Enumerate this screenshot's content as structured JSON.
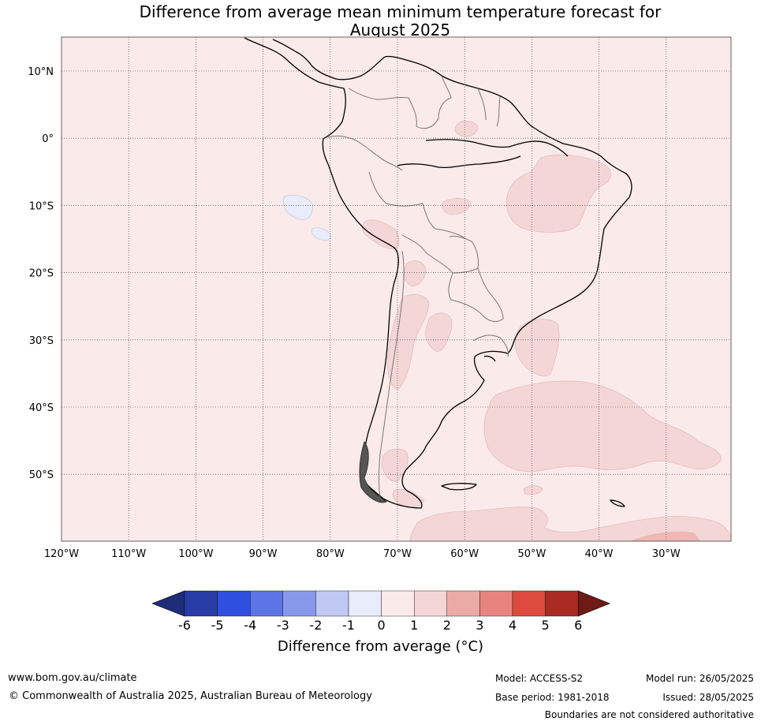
{
  "title": {
    "line1": "Difference from average mean minimum temperature forecast for",
    "line2": "August 2025"
  },
  "map": {
    "lon_labels": [
      "120°W",
      "110°W",
      "100°W",
      "90°W",
      "80°W",
      "70°W",
      "60°W",
      "50°W",
      "40°W",
      "30°W"
    ],
    "lat_labels": [
      "10°N",
      "0°",
      "10°S",
      "20°S",
      "30°S",
      "40°S",
      "50°S"
    ],
    "background_color": "#fbeaea",
    "light_red": "#f5d6d6",
    "light_blue": "#e8ecfb"
  },
  "colorbar": {
    "ticks": [
      "-6",
      "-5",
      "-4",
      "-3",
      "-2",
      "-1",
      "0",
      "1",
      "2",
      "3",
      "4",
      "5",
      "6"
    ],
    "colors": [
      "#283ca8",
      "#2f4fe0",
      "#5c74e6",
      "#8899ec",
      "#c0c8f4",
      "#e9ecfb",
      "#fbeaea",
      "#f5d6d6",
      "#ecaaa6",
      "#e8847e",
      "#dc4b3e",
      "#aa2b22"
    ],
    "low_extend_color": "#1f2d79",
    "high_extend_color": "#701a15",
    "label": "Difference from average (°C)"
  },
  "footer": {
    "website": "www.bom.gov.au/climate",
    "copyright": "© Commonwealth of Australia 2025, Australian Bureau of Meteorology",
    "model": "Model: ACCESS-S2",
    "base_period": "Base period: 1981-2018",
    "model_run": "Model run: 26/05/2025",
    "issued": "Issued: 28/05/2025",
    "disclaimer": "Boundaries are not considered authoritative"
  }
}
